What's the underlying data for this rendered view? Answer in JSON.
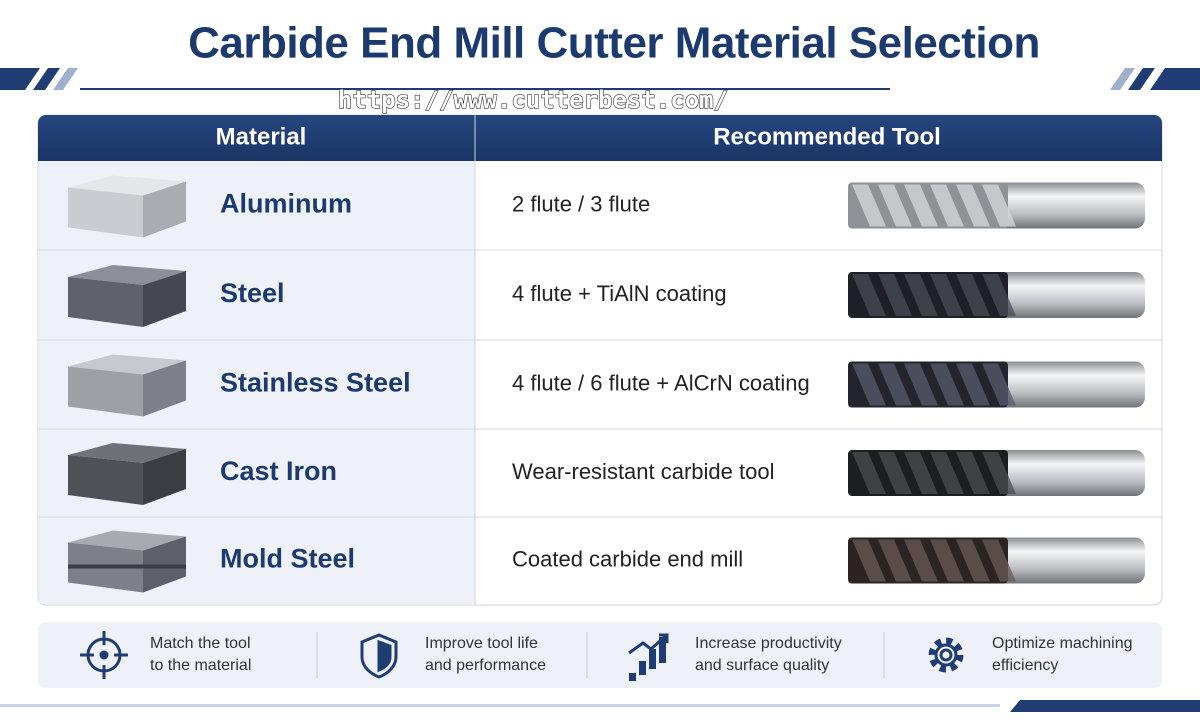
{
  "header": {
    "title": "Carbide End Mill Cutter Material Selection",
    "url": "https://www.cutterbest.com/"
  },
  "table": {
    "columns": [
      "Material",
      "Recommended Tool"
    ],
    "rows": [
      [
        "Aluminum",
        "2 flute / 3 flute"
      ],
      [
        "Steel",
        "4 flute + TiAlN coating"
      ],
      [
        "Stainless Steel",
        "4 flute / 6 flute + AlCrN coating"
      ],
      [
        "Cast Iron",
        "Wear-resistant carbide tool"
      ],
      [
        "Mold Steel",
        "Coated carbide end mill"
      ]
    ]
  },
  "footer": {
    "items": [
      [
        "Match the tool",
        "to the material"
      ],
      [
        "Improve tool life",
        "and performance"
      ],
      [
        "Increase productivity",
        "and surface quality"
      ],
      [
        "Optimize machining",
        "efficiency"
      ]
    ]
  }
}
